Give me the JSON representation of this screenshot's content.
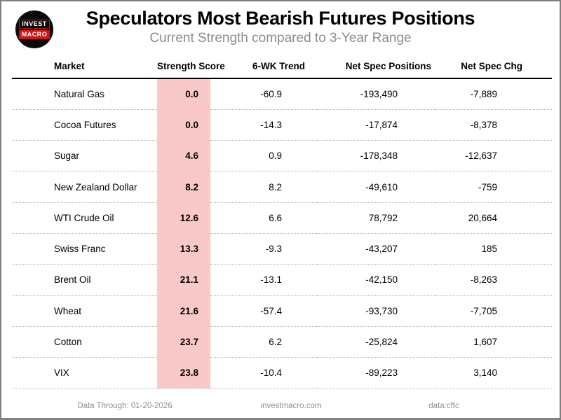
{
  "header": {
    "title": "Speculators Most Bearish Futures Positions",
    "subtitle": "Current Strength compared to 3-Year Range",
    "logo": {
      "line1": "INVEST",
      "line2": "MACRO"
    }
  },
  "table": {
    "columns": [
      {
        "key": "market",
        "label": "Market"
      },
      {
        "key": "strength_score",
        "label": "Strength Score"
      },
      {
        "key": "trend_6wk",
        "label": "6-WK Trend"
      },
      {
        "key": "net_spec_positions",
        "label": "Net Spec Positions"
      },
      {
        "key": "net_spec_chg",
        "label": "Net Spec Chg"
      }
    ],
    "rows": [
      {
        "market": "Natural Gas",
        "strength_score": "0.0",
        "trend_6wk": "-60.9",
        "net_spec_positions": "-193,490",
        "net_spec_chg": "-7,889"
      },
      {
        "market": "Cocoa Futures",
        "strength_score": "0.0",
        "trend_6wk": "-14.3",
        "net_spec_positions": "-17,874",
        "net_spec_chg": "-8,378"
      },
      {
        "market": "Sugar",
        "strength_score": "4.6",
        "trend_6wk": "0.9",
        "net_spec_positions": "-178,348",
        "net_spec_chg": "-12,637"
      },
      {
        "market": "New Zealand Dollar",
        "strength_score": "8.2",
        "trend_6wk": "8.2",
        "net_spec_positions": "-49,610",
        "net_spec_chg": "-759"
      },
      {
        "market": "WTI Crude Oil",
        "strength_score": "12.6",
        "trend_6wk": "6.6",
        "net_spec_positions": "78,792",
        "net_spec_chg": "20,664"
      },
      {
        "market": "Swiss Franc",
        "strength_score": "13.3",
        "trend_6wk": "-9.3",
        "net_spec_positions": "-43,207",
        "net_spec_chg": "185"
      },
      {
        "market": "Brent Oil",
        "strength_score": "21.1",
        "trend_6wk": "-13.1",
        "net_spec_positions": "-42,150",
        "net_spec_chg": "-8,263"
      },
      {
        "market": "Wheat",
        "strength_score": "21.6",
        "trend_6wk": "-57.4",
        "net_spec_positions": "-93,730",
        "net_spec_chg": "-7,705"
      },
      {
        "market": "Cotton",
        "strength_score": "23.7",
        "trend_6wk": "6.2",
        "net_spec_positions": "-25,824",
        "net_spec_chg": "1,607"
      },
      {
        "market": "VIX",
        "strength_score": "23.8",
        "trend_6wk": "-10.4",
        "net_spec_positions": "-89,223",
        "net_spec_chg": "3,140"
      }
    ]
  },
  "chart_data": {
    "type": "table",
    "title": "Speculators Most Bearish Futures Positions",
    "subtitle": "Current Strength compared to 3-Year Range",
    "columns": [
      "Market",
      "Strength Score",
      "6-WK Trend",
      "Net Spec Positions",
      "Net Spec Chg"
    ],
    "rows": [
      [
        "Natural Gas",
        0.0,
        -60.9,
        -193490,
        -7889
      ],
      [
        "Cocoa Futures",
        0.0,
        -14.3,
        -17874,
        -8378
      ],
      [
        "Sugar",
        4.6,
        0.9,
        -178348,
        -12637
      ],
      [
        "New Zealand Dollar",
        8.2,
        8.2,
        -49610,
        -759
      ],
      [
        "WTI Crude Oil",
        12.6,
        6.6,
        78792,
        20664
      ],
      [
        "Swiss Franc",
        13.3,
        -9.3,
        -43207,
        185
      ],
      [
        "Brent Oil",
        21.1,
        -13.1,
        -42150,
        -8263
      ],
      [
        "Wheat",
        21.6,
        -57.4,
        -93730,
        -7705
      ],
      [
        "Cotton",
        23.7,
        6.2,
        -25824,
        1607
      ],
      [
        "VIX",
        23.8,
        -10.4,
        -89223,
        3140
      ]
    ],
    "highlighted_column": "Strength Score"
  },
  "footer": {
    "data_through": "Data Through: 01-20-2026",
    "website": "investmacro.com",
    "source": "data:cftc"
  },
  "colors": {
    "score_highlight": "#f9c8c8",
    "logo_red": "#cc1616",
    "subtitle_gray": "#8c8c8c",
    "footer_gray": "#8f8f8f",
    "divider_dotted": "#b3b3b3",
    "frame_border": "#808080"
  }
}
